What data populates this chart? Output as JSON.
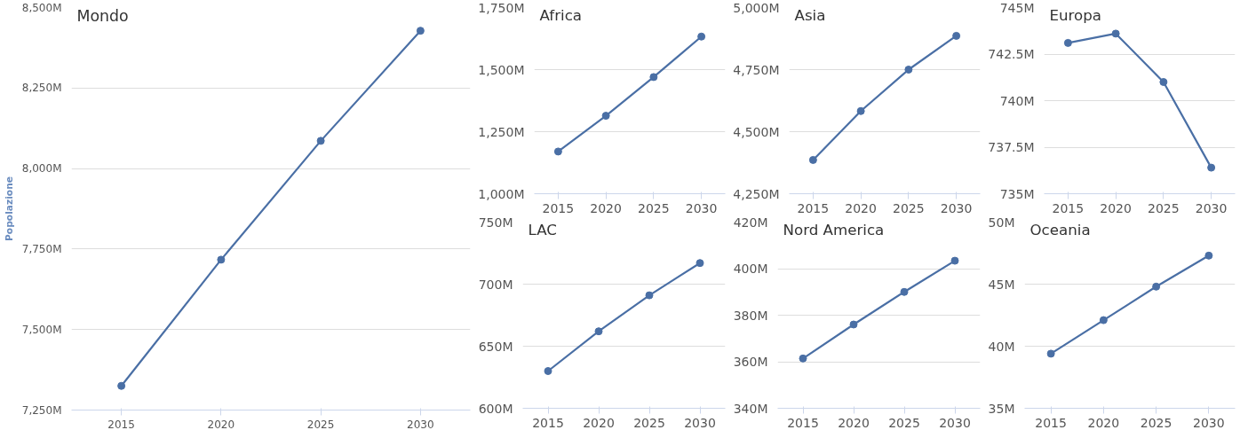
{
  "chart_data": [
    {
      "type": "line",
      "title": "Mondo",
      "ylabel": "Popolazione",
      "categories": [
        "2015",
        "2020",
        "2025",
        "2030"
      ],
      "series": [
        {
          "color": "#4a6fa5",
          "values": [
            7325,
            7717,
            8086,
            8428
          ]
        }
      ],
      "ylim": [
        7250,
        8500
      ],
      "yticks": [
        {
          "value": 7250,
          "label": "7,250M"
        },
        {
          "value": 7500,
          "label": "7,500M"
        },
        {
          "value": 7750,
          "label": "7,750M"
        },
        {
          "value": 8000,
          "label": "8,000M"
        },
        {
          "value": 8250,
          "label": "8,250M"
        },
        {
          "value": 8500,
          "label": "8,500M"
        }
      ],
      "grid": "y",
      "marker": "circle",
      "line_style": "solid"
    },
    {
      "type": "line",
      "title": "Africa",
      "categories": [
        "2015",
        "2020",
        "2025",
        "2030"
      ],
      "series": [
        {
          "color": "#4a6fa5",
          "values": [
            1170,
            1314,
            1470,
            1633
          ]
        }
      ],
      "ylim": [
        1000,
        1750
      ],
      "yticks": [
        {
          "value": 1000,
          "label": "1,000M"
        },
        {
          "value": 1250,
          "label": "1,250M"
        },
        {
          "value": 1500,
          "label": "1,500M"
        },
        {
          "value": 1750,
          "label": "1,750M"
        }
      ],
      "grid": "y",
      "marker": "circle",
      "line_style": "solid"
    },
    {
      "type": "line",
      "title": "Asia",
      "categories": [
        "2015",
        "2020",
        "2025",
        "2030"
      ],
      "series": [
        {
          "color": "#4a6fa5",
          "values": [
            4386,
            4583,
            4750,
            4886
          ]
        }
      ],
      "ylim": [
        4250,
        5000
      ],
      "yticks": [
        {
          "value": 4250,
          "label": "4,250M"
        },
        {
          "value": 4500,
          "label": "4,500M"
        },
        {
          "value": 4750,
          "label": "4,750M"
        },
        {
          "value": 5000,
          "label": "5,000M"
        }
      ],
      "grid": "y",
      "marker": "circle",
      "line_style": "solid"
    },
    {
      "type": "line",
      "title": "Europa",
      "categories": [
        "2015",
        "2020",
        "2025",
        "2030"
      ],
      "series": [
        {
          "color": "#4a6fa5",
          "values": [
            743.1,
            743.6,
            741.0,
            736.4
          ]
        }
      ],
      "ylim": [
        735,
        745
      ],
      "yticks": [
        {
          "value": 735,
          "label": "735M"
        },
        {
          "value": 737.5,
          "label": "737.5M"
        },
        {
          "value": 740,
          "label": "740M"
        },
        {
          "value": 742.5,
          "label": "742.5M"
        },
        {
          "value": 745,
          "label": "745M"
        }
      ],
      "grid": "y",
      "marker": "circle",
      "line_style": "solid"
    },
    {
      "type": "line",
      "title": "LAC",
      "categories": [
        "2015",
        "2020",
        "2025",
        "2030"
      ],
      "series": [
        {
          "color": "#4a6fa5",
          "values": [
            630,
            662,
            691,
            717
          ]
        }
      ],
      "ylim": [
        600,
        750
      ],
      "yticks": [
        {
          "value": 600,
          "label": "600M"
        },
        {
          "value": 650,
          "label": "650M"
        },
        {
          "value": 700,
          "label": "700M"
        },
        {
          "value": 750,
          "label": "750M"
        }
      ],
      "grid": "y",
      "marker": "circle",
      "line_style": "solid"
    },
    {
      "type": "line",
      "title": "Nord America",
      "categories": [
        "2015",
        "2020",
        "2025",
        "2030"
      ],
      "series": [
        {
          "color": "#4a6fa5",
          "values": [
            361.4,
            376,
            390,
            403.4
          ]
        }
      ],
      "ylim": [
        340,
        420
      ],
      "yticks": [
        {
          "value": 340,
          "label": "340M"
        },
        {
          "value": 360,
          "label": "360M"
        },
        {
          "value": 380,
          "label": "380M"
        },
        {
          "value": 400,
          "label": "400M"
        },
        {
          "value": 420,
          "label": "420M"
        }
      ],
      "grid": "y",
      "marker": "circle",
      "line_style": "solid"
    },
    {
      "type": "line",
      "title": "Oceania",
      "categories": [
        "2015",
        "2020",
        "2025",
        "2030"
      ],
      "series": [
        {
          "color": "#4a6fa5",
          "values": [
            39.4,
            42.1,
            44.8,
            47.3
          ]
        }
      ],
      "ylim": [
        35,
        50
      ],
      "yticks": [
        {
          "value": 35,
          "label": "35M"
        },
        {
          "value": 40,
          "label": "40M"
        },
        {
          "value": 45,
          "label": "45M"
        },
        {
          "value": 50,
          "label": "50M"
        }
      ],
      "grid": "y",
      "marker": "circle",
      "line_style": "solid"
    }
  ]
}
